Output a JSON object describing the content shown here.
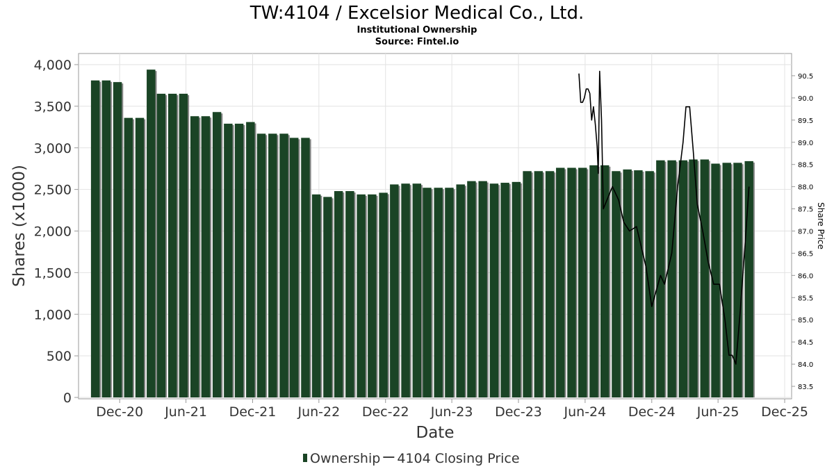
{
  "chart_data": {
    "type": "bar",
    "title": "TW:4104 / Excelsior Medical Co., Ltd.",
    "subtitle": "Institutional Ownership",
    "source": "Source: Fintel.io",
    "xlabel": "Date",
    "ylabel": "Shares (x1000)",
    "y2label": "Share Price",
    "ylim": [
      0,
      4000
    ],
    "y2lim": [
      83.25,
      90.75
    ],
    "grid": true,
    "legend_position": "bottom-center",
    "colors": {
      "bar": "#1a4425",
      "bar_shadow": "#888888",
      "line": "#000000"
    },
    "yticks": [
      {
        "value": 0,
        "label": "0"
      },
      {
        "value": 500,
        "label": "500"
      },
      {
        "value": 1000,
        "label": "1,000"
      },
      {
        "value": 1500,
        "label": "1,500"
      },
      {
        "value": 2000,
        "label": "2,000"
      },
      {
        "value": 2500,
        "label": "2,500"
      },
      {
        "value": 3000,
        "label": "3,000"
      },
      {
        "value": 3500,
        "label": "3,500"
      },
      {
        "value": 4000,
        "label": "4,000"
      }
    ],
    "y2ticks": [
      {
        "value": 83.5,
        "label": "83.5"
      },
      {
        "value": 84.0,
        "label": "84.0"
      },
      {
        "value": 84.5,
        "label": "84.5"
      },
      {
        "value": 85.0,
        "label": "85.0"
      },
      {
        "value": 85.5,
        "label": "85.5"
      },
      {
        "value": 86.0,
        "label": "86.0"
      },
      {
        "value": 86.5,
        "label": "86.5"
      },
      {
        "value": 87.0,
        "label": "87.0"
      },
      {
        "value": 87.5,
        "label": "87.5"
      },
      {
        "value": 88.0,
        "label": "88.0"
      },
      {
        "value": 88.5,
        "label": "88.5"
      },
      {
        "value": 89.0,
        "label": "89.0"
      },
      {
        "value": 89.5,
        "label": "89.5"
      },
      {
        "value": 90.0,
        "label": "90.0"
      },
      {
        "value": 90.5,
        "label": "90.5"
      }
    ],
    "xticks": [
      {
        "date": "2020-12-01",
        "label": "Dec-20"
      },
      {
        "date": "2021-06-01",
        "label": "Jun-21"
      },
      {
        "date": "2021-12-01",
        "label": "Dec-21"
      },
      {
        "date": "2022-06-01",
        "label": "Jun-22"
      },
      {
        "date": "2022-12-01",
        "label": "Dec-22"
      },
      {
        "date": "2023-06-01",
        "label": "Jun-23"
      },
      {
        "date": "2023-12-01",
        "label": "Dec-23"
      },
      {
        "date": "2024-06-01",
        "label": "Jun-24"
      },
      {
        "date": "2024-12-01",
        "label": "Dec-24"
      },
      {
        "date": "2025-06-01",
        "label": "Jun-25"
      },
      {
        "date": "2025-12-01",
        "label": "Dec-25"
      }
    ],
    "xrange": [
      "2020-08-10",
      "2025-12-20"
    ],
    "series": [
      {
        "name": "Ownership",
        "type": "bar",
        "axis": "left",
        "points": [
          {
            "date": "2020-09-25",
            "value": 3810
          },
          {
            "date": "2020-10-25",
            "value": 3810
          },
          {
            "date": "2020-11-25",
            "value": 3790
          },
          {
            "date": "2020-12-25",
            "value": 3360
          },
          {
            "date": "2021-01-25",
            "value": 3360
          },
          {
            "date": "2021-02-25",
            "value": 3940
          },
          {
            "date": "2021-03-25",
            "value": 3650
          },
          {
            "date": "2021-04-25",
            "value": 3650
          },
          {
            "date": "2021-05-25",
            "value": 3650
          },
          {
            "date": "2021-06-25",
            "value": 3380
          },
          {
            "date": "2021-07-25",
            "value": 3380
          },
          {
            "date": "2021-08-25",
            "value": 3430
          },
          {
            "date": "2021-09-25",
            "value": 3290
          },
          {
            "date": "2021-10-25",
            "value": 3290
          },
          {
            "date": "2021-11-25",
            "value": 3310
          },
          {
            "date": "2021-12-25",
            "value": 3170
          },
          {
            "date": "2022-01-25",
            "value": 3170
          },
          {
            "date": "2022-02-25",
            "value": 3170
          },
          {
            "date": "2022-03-25",
            "value": 3120
          },
          {
            "date": "2022-04-25",
            "value": 3120
          },
          {
            "date": "2022-05-25",
            "value": 2440
          },
          {
            "date": "2022-06-25",
            "value": 2410
          },
          {
            "date": "2022-07-25",
            "value": 2480
          },
          {
            "date": "2022-08-25",
            "value": 2480
          },
          {
            "date": "2022-09-25",
            "value": 2440
          },
          {
            "date": "2022-10-25",
            "value": 2440
          },
          {
            "date": "2022-11-25",
            "value": 2460
          },
          {
            "date": "2022-12-25",
            "value": 2560
          },
          {
            "date": "2023-01-25",
            "value": 2570
          },
          {
            "date": "2023-02-25",
            "value": 2570
          },
          {
            "date": "2023-03-25",
            "value": 2520
          },
          {
            "date": "2023-04-25",
            "value": 2520
          },
          {
            "date": "2023-05-25",
            "value": 2520
          },
          {
            "date": "2023-06-25",
            "value": 2560
          },
          {
            "date": "2023-07-25",
            "value": 2600
          },
          {
            "date": "2023-08-25",
            "value": 2600
          },
          {
            "date": "2023-09-25",
            "value": 2570
          },
          {
            "date": "2023-10-25",
            "value": 2580
          },
          {
            "date": "2023-11-25",
            "value": 2590
          },
          {
            "date": "2023-12-25",
            "value": 2720
          },
          {
            "date": "2024-01-25",
            "value": 2720
          },
          {
            "date": "2024-02-25",
            "value": 2720
          },
          {
            "date": "2024-03-25",
            "value": 2760
          },
          {
            "date": "2024-04-25",
            "value": 2760
          },
          {
            "date": "2024-05-25",
            "value": 2760
          },
          {
            "date": "2024-06-25",
            "value": 2790
          },
          {
            "date": "2024-07-25",
            "value": 2790
          },
          {
            "date": "2024-08-25",
            "value": 2720
          },
          {
            "date": "2024-09-25",
            "value": 2740
          },
          {
            "date": "2024-10-25",
            "value": 2730
          },
          {
            "date": "2024-11-25",
            "value": 2720
          },
          {
            "date": "2024-12-25",
            "value": 2850
          },
          {
            "date": "2025-01-25",
            "value": 2850
          },
          {
            "date": "2025-02-25",
            "value": 2850
          },
          {
            "date": "2025-03-25",
            "value": 2860
          },
          {
            "date": "2025-04-25",
            "value": 2860
          },
          {
            "date": "2025-05-25",
            "value": 2810
          },
          {
            "date": "2025-06-25",
            "value": 2820
          },
          {
            "date": "2025-07-25",
            "value": 2820
          },
          {
            "date": "2025-08-25",
            "value": 2840
          }
        ]
      },
      {
        "name": "4104 Closing Price",
        "type": "line",
        "axis": "right",
        "points": [
          {
            "date": "2024-05-15",
            "value": 90.55
          },
          {
            "date": "2024-05-20",
            "value": 89.9
          },
          {
            "date": "2024-05-25",
            "value": 89.9
          },
          {
            "date": "2024-05-30",
            "value": 90.0
          },
          {
            "date": "2024-06-04",
            "value": 90.2
          },
          {
            "date": "2024-06-09",
            "value": 90.2
          },
          {
            "date": "2024-06-14",
            "value": 90.1
          },
          {
            "date": "2024-06-19",
            "value": 89.5
          },
          {
            "date": "2024-06-24",
            "value": 89.8
          },
          {
            "date": "2024-06-29",
            "value": 89.4
          },
          {
            "date": "2024-07-04",
            "value": 88.9
          },
          {
            "date": "2024-07-07",
            "value": 88.3
          },
          {
            "date": "2024-07-11",
            "value": 90.6
          },
          {
            "date": "2024-07-16",
            "value": 89.5
          },
          {
            "date": "2024-07-21",
            "value": 87.5
          },
          {
            "date": "2024-08-15",
            "value": 88.0
          },
          {
            "date": "2024-09-01",
            "value": 87.7
          },
          {
            "date": "2024-09-15",
            "value": 87.2
          },
          {
            "date": "2024-10-01",
            "value": 87.0
          },
          {
            "date": "2024-10-20",
            "value": 87.1
          },
          {
            "date": "2024-11-15",
            "value": 86.2
          },
          {
            "date": "2024-12-01",
            "value": 85.3
          },
          {
            "date": "2024-12-25",
            "value": 86.0
          },
          {
            "date": "2025-01-05",
            "value": 85.8
          },
          {
            "date": "2025-01-25",
            "value": 86.5
          },
          {
            "date": "2025-02-10",
            "value": 88.0
          },
          {
            "date": "2025-02-25",
            "value": 89.0
          },
          {
            "date": "2025-03-05",
            "value": 89.8
          },
          {
            "date": "2025-03-15",
            "value": 89.8
          },
          {
            "date": "2025-03-25",
            "value": 88.8
          },
          {
            "date": "2025-04-05",
            "value": 87.6
          },
          {
            "date": "2025-04-20",
            "value": 87.0
          },
          {
            "date": "2025-05-05",
            "value": 86.3
          },
          {
            "date": "2025-05-20",
            "value": 85.8
          },
          {
            "date": "2025-06-05",
            "value": 85.8
          },
          {
            "date": "2025-06-20",
            "value": 85.0
          },
          {
            "date": "2025-07-01",
            "value": 84.2
          },
          {
            "date": "2025-07-10",
            "value": 84.2
          },
          {
            "date": "2025-07-20",
            "value": 84.0
          },
          {
            "date": "2025-08-01",
            "value": 85.2
          },
          {
            "date": "2025-08-15",
            "value": 86.8
          },
          {
            "date": "2025-08-25",
            "value": 88.0
          }
        ]
      }
    ]
  }
}
